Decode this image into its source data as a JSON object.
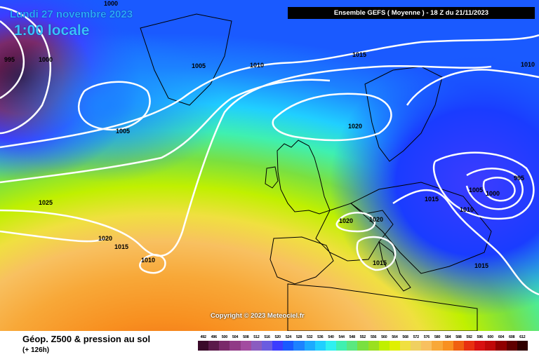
{
  "header": {
    "date": "Lundi 27 novembre 2023",
    "local_time": "1:00 locale",
    "banner": "Ensemble GEFS  ( Moyenne )  -  18 Z du 21/11/2023"
  },
  "map": {
    "copyright": "Copyright © 2023 Meteociel.fr",
    "isobar_labels": [
      "1000",
      "995",
      "1000",
      "1005",
      "1010",
      "1015",
      "1005",
      "1020",
      "1025",
      "1020",
      "1015",
      "1010",
      "1020",
      "1020",
      "1015",
      "1015",
      "1005",
      "1000",
      "995",
      "1010",
      "1015",
      "1010"
    ]
  },
  "footer": {
    "title": "Géop. Z500 & pression au sol",
    "subtitle": "(+ 126h)"
  },
  "legend": {
    "labels": [
      "492",
      "496",
      "500",
      "504",
      "508",
      "512",
      "516",
      "520",
      "524",
      "528",
      "532",
      "536",
      "540",
      "544",
      "548",
      "552",
      "556",
      "560",
      "564",
      "568",
      "572",
      "576",
      "580",
      "584",
      "588",
      "592",
      "596",
      "600",
      "604",
      "608",
      "612"
    ],
    "colors": [
      "#3a0a2a",
      "#5b1a4a",
      "#7a2a6a",
      "#903a86",
      "#a24ba0",
      "#8a5cc0",
      "#6a5ce0",
      "#3c3cff",
      "#1a5aff",
      "#1c82ff",
      "#1caaff",
      "#20cfff",
      "#2ff0f0",
      "#3ff0b0",
      "#5ae880",
      "#7ae040",
      "#9ae020",
      "#c0f000",
      "#e0f000",
      "#f0e040",
      "#f0d060",
      "#f8c060",
      "#f8a838",
      "#f89020",
      "#f06010",
      "#e83010",
      "#d81010",
      "#c00808",
      "#900000",
      "#600000",
      "#300000"
    ]
  }
}
